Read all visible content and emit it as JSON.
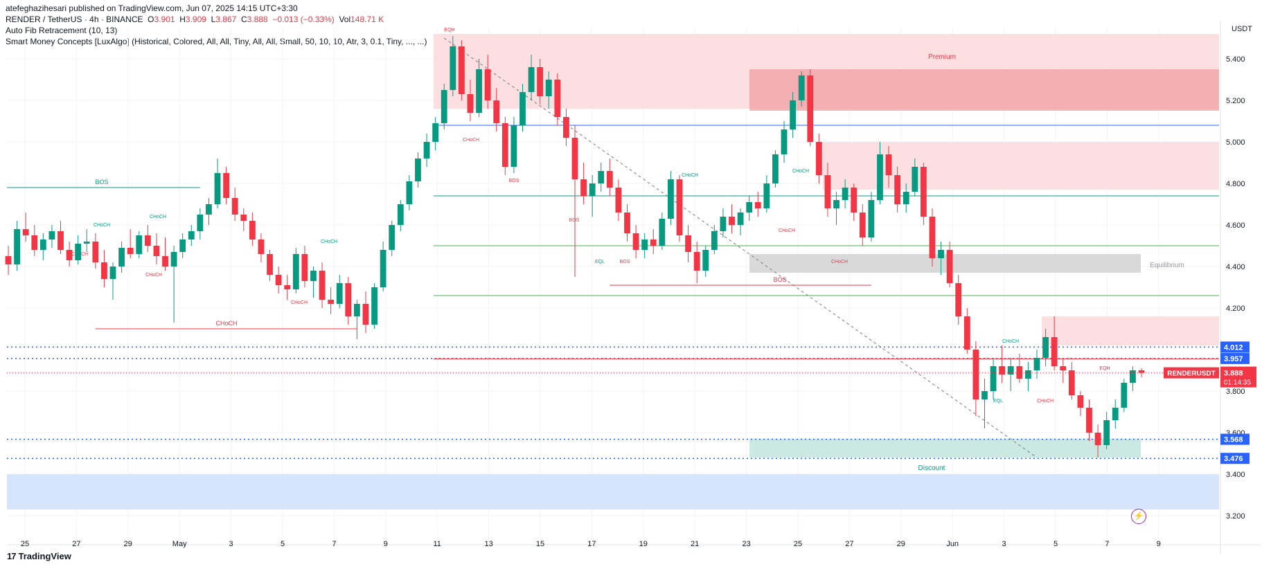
{
  "publisher": "atefeghazihesari published on TradingView.com, Jun 07, 2025 14:15 UTC+3:30",
  "symbol_line": {
    "symbol": "RENDER / TetherUS · 4h · BINANCE",
    "o_label": "O",
    "o": "3.901",
    "h_label": "H",
    "h": "3.909",
    "l_label": "L",
    "l": "3.867",
    "c_label": "C",
    "c": "3.888",
    "change": "−0.013 (−0.33%)",
    "vol_label": "Vol",
    "vol": "148.71 K"
  },
  "indicators": [
    "Auto Fib Retracement (10, 13)",
    "Smart Money Concepts [LuxAlgo] (Historical, Colored, All, All, Tiny, All, All, Small, 50, 10, 10, Atr, 3, 0.1, Tiny, ..., ...)"
  ],
  "currency": "USDT",
  "footer": {
    "brand": "TradingView",
    "logo_text": "17"
  },
  "colors": {
    "up": "#089981",
    "down": "#f23645",
    "premium": "#f7c5c8",
    "premium_dark": "#ef9a9e",
    "discount": "#b2dfd5",
    "equilibrium": "#d6d6d6",
    "blue_zone": "#cfe0fb",
    "fib_blue": "#2962ff",
    "fib_green": "#4caf50"
  },
  "chart_data": {
    "type": "candlestick",
    "title": "RENDER / TetherUS · 4h · BINANCE",
    "ylim": [
      3.15,
      5.55
    ],
    "y_ticks": [
      "5.400",
      "5.200",
      "5.000",
      "4.800",
      "4.600",
      "4.400",
      "4.200",
      "3.800",
      "3.600",
      "3.400",
      "3.200"
    ],
    "x_ticks": [
      "25",
      "27",
      "29",
      "May",
      "3",
      "5",
      "7",
      "9",
      "11",
      "13",
      "15",
      "17",
      "19",
      "21",
      "23",
      "25",
      "27",
      "29",
      "Jun",
      "3",
      "5",
      "7",
      "9"
    ],
    "price_labels": [
      {
        "value": 4.012,
        "text": "4.012",
        "color": "#2962ff"
      },
      {
        "value": 3.957,
        "text": "3.957",
        "color": "#2962ff"
      },
      {
        "value": 3.568,
        "text": "3.568",
        "color": "#2962ff"
      },
      {
        "value": 3.476,
        "text": "3.476",
        "color": "#2962ff"
      }
    ],
    "last_price": {
      "value": 3.888,
      "symbol": "RENDERUSDT",
      "text": "3.888",
      "countdown": "01:14:35"
    },
    "zones": [
      {
        "name": "Premium",
        "from": 5.16,
        "to": 5.52,
        "start": 11,
        "end": 1.0,
        "color": "#fbd3d6"
      },
      {
        "name": "Equilibrium",
        "from": 4.37,
        "to": 4.46,
        "start": 23.1,
        "end": 1.0,
        "color": "#d9d9d9"
      },
      {
        "name": "Discount",
        "from": 3.48,
        "to": 3.57,
        "start": 23.1,
        "end": 1.0,
        "color": "#cbe9e1"
      }
    ],
    "zone_labels": [
      "Premium",
      "Equilibrium",
      "Discount"
    ],
    "smc_labels": [
      "BOS",
      "CHoCH",
      "CHoCH",
      "CHoCH",
      "CHoCH",
      "CHoCH",
      "CHoCH",
      "CHoCH",
      "EQH",
      "EQH",
      "CHoCH",
      "BOS",
      "BOS",
      "BOS",
      "EQL",
      "CHoCH",
      "CHoCH",
      "CHoCH",
      "BOS",
      "CHoCH",
      "CHoCH",
      "EQL",
      "CHoCH",
      "CHoCH",
      "EQH"
    ],
    "fib_levels": [
      5.08,
      4.74,
      4.5,
      4.26
    ],
    "candles": [
      {
        "o": 4.45,
        "h": 4.5,
        "l": 4.36,
        "c": 4.41
      },
      {
        "o": 4.41,
        "h": 4.62,
        "l": 4.38,
        "c": 4.58
      },
      {
        "o": 4.58,
        "h": 4.66,
        "l": 4.52,
        "c": 4.55
      },
      {
        "o": 4.55,
        "h": 4.6,
        "l": 4.45,
        "c": 4.48
      },
      {
        "o": 4.48,
        "h": 4.56,
        "l": 4.43,
        "c": 4.53
      },
      {
        "o": 4.53,
        "h": 4.6,
        "l": 4.49,
        "c": 4.57
      },
      {
        "o": 4.57,
        "h": 4.62,
        "l": 4.46,
        "c": 4.48
      },
      {
        "o": 4.48,
        "h": 4.52,
        "l": 4.4,
        "c": 4.43
      },
      {
        "o": 4.43,
        "h": 4.55,
        "l": 4.41,
        "c": 4.51
      },
      {
        "o": 4.51,
        "h": 4.58,
        "l": 4.47,
        "c": 4.52
      },
      {
        "o": 4.52,
        "h": 4.56,
        "l": 4.39,
        "c": 4.42
      },
      {
        "o": 4.42,
        "h": 4.48,
        "l": 4.3,
        "c": 4.34
      },
      {
        "o": 4.34,
        "h": 4.42,
        "l": 4.24,
        "c": 4.4
      },
      {
        "o": 4.4,
        "h": 4.52,
        "l": 4.37,
        "c": 4.49
      },
      {
        "o": 4.49,
        "h": 4.58,
        "l": 4.44,
        "c": 4.46
      },
      {
        "o": 4.46,
        "h": 4.57,
        "l": 4.44,
        "c": 4.55
      },
      {
        "o": 4.55,
        "h": 4.6,
        "l": 4.47,
        "c": 4.5
      },
      {
        "o": 4.5,
        "h": 4.56,
        "l": 4.41,
        "c": 4.45
      },
      {
        "o": 4.45,
        "h": 4.54,
        "l": 4.38,
        "c": 4.4
      },
      {
        "o": 4.4,
        "h": 4.5,
        "l": 4.13,
        "c": 4.47
      },
      {
        "o": 4.47,
        "h": 4.56,
        "l": 4.44,
        "c": 4.53
      },
      {
        "o": 4.53,
        "h": 4.6,
        "l": 4.5,
        "c": 4.57
      },
      {
        "o": 4.57,
        "h": 4.68,
        "l": 4.53,
        "c": 4.65
      },
      {
        "o": 4.65,
        "h": 4.73,
        "l": 4.6,
        "c": 4.7
      },
      {
        "o": 4.7,
        "h": 4.92,
        "l": 4.68,
        "c": 4.85
      },
      {
        "o": 4.85,
        "h": 4.88,
        "l": 4.7,
        "c": 4.73
      },
      {
        "o": 4.73,
        "h": 4.78,
        "l": 4.62,
        "c": 4.65
      },
      {
        "o": 4.65,
        "h": 4.68,
        "l": 4.57,
        "c": 4.62
      },
      {
        "o": 4.62,
        "h": 4.66,
        "l": 4.5,
        "c": 4.53
      },
      {
        "o": 4.53,
        "h": 4.56,
        "l": 4.42,
        "c": 4.46
      },
      {
        "o": 4.46,
        "h": 4.48,
        "l": 4.33,
        "c": 4.36
      },
      {
        "o": 4.36,
        "h": 4.4,
        "l": 4.27,
        "c": 4.31
      },
      {
        "o": 4.31,
        "h": 4.36,
        "l": 4.24,
        "c": 4.29
      },
      {
        "o": 4.29,
        "h": 4.49,
        "l": 4.27,
        "c": 4.46
      },
      {
        "o": 4.46,
        "h": 4.5,
        "l": 4.3,
        "c": 4.33
      },
      {
        "o": 4.33,
        "h": 4.4,
        "l": 4.25,
        "c": 4.38
      },
      {
        "o": 4.38,
        "h": 4.42,
        "l": 4.2,
        "c": 4.24
      },
      {
        "o": 4.24,
        "h": 4.3,
        "l": 4.17,
        "c": 4.22
      },
      {
        "o": 4.22,
        "h": 4.36,
        "l": 4.2,
        "c": 4.32
      },
      {
        "o": 4.32,
        "h": 4.35,
        "l": 4.12,
        "c": 4.16
      },
      {
        "o": 4.16,
        "h": 4.24,
        "l": 4.05,
        "c": 4.22
      },
      {
        "o": 4.22,
        "h": 4.28,
        "l": 4.08,
        "c": 4.12
      },
      {
        "o": 4.12,
        "h": 4.32,
        "l": 4.1,
        "c": 4.3
      },
      {
        "o": 4.3,
        "h": 4.52,
        "l": 4.28,
        "c": 4.48
      },
      {
        "o": 4.48,
        "h": 4.62,
        "l": 4.45,
        "c": 4.6
      },
      {
        "o": 4.6,
        "h": 4.72,
        "l": 4.57,
        "c": 4.7
      },
      {
        "o": 4.7,
        "h": 4.84,
        "l": 4.67,
        "c": 4.81
      },
      {
        "o": 4.81,
        "h": 4.95,
        "l": 4.78,
        "c": 4.92
      },
      {
        "o": 4.92,
        "h": 5.04,
        "l": 4.88,
        "c": 5.0
      },
      {
        "o": 5.0,
        "h": 5.12,
        "l": 4.96,
        "c": 5.09
      },
      {
        "o": 5.09,
        "h": 5.28,
        "l": 5.06,
        "c": 5.25
      },
      {
        "o": 5.25,
        "h": 5.51,
        "l": 5.22,
        "c": 5.46
      },
      {
        "o": 5.46,
        "h": 5.49,
        "l": 5.2,
        "c": 5.23
      },
      {
        "o": 5.23,
        "h": 5.3,
        "l": 5.1,
        "c": 5.14
      },
      {
        "o": 5.14,
        "h": 5.4,
        "l": 5.12,
        "c": 5.35
      },
      {
        "o": 5.35,
        "h": 5.42,
        "l": 5.16,
        "c": 5.2
      },
      {
        "o": 5.2,
        "h": 5.26,
        "l": 5.05,
        "c": 5.09
      },
      {
        "o": 5.09,
        "h": 5.12,
        "l": 4.84,
        "c": 4.88
      },
      {
        "o": 4.88,
        "h": 5.12,
        "l": 4.85,
        "c": 5.08
      },
      {
        "o": 5.08,
        "h": 5.28,
        "l": 5.05,
        "c": 5.24
      },
      {
        "o": 5.24,
        "h": 5.42,
        "l": 5.2,
        "c": 5.36
      },
      {
        "o": 5.36,
        "h": 5.4,
        "l": 5.18,
        "c": 5.22
      },
      {
        "o": 5.22,
        "h": 5.34,
        "l": 5.16,
        "c": 5.3
      },
      {
        "o": 5.3,
        "h": 5.33,
        "l": 5.08,
        "c": 5.12
      },
      {
        "o": 5.12,
        "h": 5.16,
        "l": 4.98,
        "c": 5.02
      },
      {
        "o": 5.02,
        "h": 5.08,
        "l": 4.35,
        "c": 4.82
      },
      {
        "o": 4.82,
        "h": 4.9,
        "l": 4.7,
        "c": 4.74
      },
      {
        "o": 4.74,
        "h": 4.84,
        "l": 4.64,
        "c": 4.8
      },
      {
        "o": 4.8,
        "h": 4.9,
        "l": 4.76,
        "c": 4.86
      },
      {
        "o": 4.86,
        "h": 4.92,
        "l": 4.74,
        "c": 4.78
      },
      {
        "o": 4.78,
        "h": 4.82,
        "l": 4.62,
        "c": 4.66
      },
      {
        "o": 4.66,
        "h": 4.7,
        "l": 4.52,
        "c": 4.56
      },
      {
        "o": 4.56,
        "h": 4.6,
        "l": 4.44,
        "c": 4.48
      },
      {
        "o": 4.48,
        "h": 4.56,
        "l": 4.44,
        "c": 4.53
      },
      {
        "o": 4.53,
        "h": 4.58,
        "l": 4.46,
        "c": 4.5
      },
      {
        "o": 4.5,
        "h": 4.66,
        "l": 4.48,
        "c": 4.63
      },
      {
        "o": 4.63,
        "h": 4.86,
        "l": 4.6,
        "c": 4.82
      },
      {
        "o": 4.82,
        "h": 4.84,
        "l": 4.52,
        "c": 4.55
      },
      {
        "o": 4.55,
        "h": 4.6,
        "l": 4.42,
        "c": 4.47
      },
      {
        "o": 4.47,
        "h": 4.52,
        "l": 4.32,
        "c": 4.38
      },
      {
        "o": 4.38,
        "h": 4.5,
        "l": 4.35,
        "c": 4.48
      },
      {
        "o": 4.48,
        "h": 4.6,
        "l": 4.46,
        "c": 4.57
      },
      {
        "o": 4.57,
        "h": 4.68,
        "l": 4.54,
        "c": 4.64
      },
      {
        "o": 4.64,
        "h": 4.7,
        "l": 4.56,
        "c": 4.6
      },
      {
        "o": 4.6,
        "h": 4.68,
        "l": 4.55,
        "c": 4.66
      },
      {
        "o": 4.66,
        "h": 4.74,
        "l": 4.62,
        "c": 4.71
      },
      {
        "o": 4.71,
        "h": 4.76,
        "l": 4.64,
        "c": 4.68
      },
      {
        "o": 4.68,
        "h": 4.84,
        "l": 4.66,
        "c": 4.8
      },
      {
        "o": 4.8,
        "h": 4.96,
        "l": 4.78,
        "c": 4.94
      },
      {
        "o": 4.94,
        "h": 5.1,
        "l": 4.9,
        "c": 5.06
      },
      {
        "o": 5.06,
        "h": 5.24,
        "l": 5.02,
        "c": 5.2
      },
      {
        "o": 5.2,
        "h": 5.34,
        "l": 5.17,
        "c": 5.32
      },
      {
        "o": 5.32,
        "h": 5.35,
        "l": 4.98,
        "c": 5.0
      },
      {
        "o": 5.0,
        "h": 5.04,
        "l": 4.8,
        "c": 4.84
      },
      {
        "o": 4.84,
        "h": 4.9,
        "l": 4.64,
        "c": 4.68
      },
      {
        "o": 4.68,
        "h": 4.76,
        "l": 4.6,
        "c": 4.72
      },
      {
        "o": 4.72,
        "h": 4.82,
        "l": 4.68,
        "c": 4.78
      },
      {
        "o": 4.78,
        "h": 4.8,
        "l": 4.62,
        "c": 4.66
      },
      {
        "o": 4.66,
        "h": 4.7,
        "l": 4.5,
        "c": 4.54
      },
      {
        "o": 4.54,
        "h": 4.76,
        "l": 4.52,
        "c": 4.72
      },
      {
        "o": 4.72,
        "h": 5.0,
        "l": 4.7,
        "c": 4.94
      },
      {
        "o": 4.94,
        "h": 4.98,
        "l": 4.78,
        "c": 4.84
      },
      {
        "o": 4.84,
        "h": 4.88,
        "l": 4.66,
        "c": 4.7
      },
      {
        "o": 4.7,
        "h": 4.8,
        "l": 4.66,
        "c": 4.76
      },
      {
        "o": 4.76,
        "h": 4.92,
        "l": 4.74,
        "c": 4.88
      },
      {
        "o": 4.88,
        "h": 4.9,
        "l": 4.6,
        "c": 4.64
      },
      {
        "o": 4.64,
        "h": 4.68,
        "l": 4.4,
        "c": 4.44
      },
      {
        "o": 4.44,
        "h": 4.52,
        "l": 4.36,
        "c": 4.48
      },
      {
        "o": 4.48,
        "h": 4.52,
        "l": 4.3,
        "c": 4.32
      },
      {
        "o": 4.32,
        "h": 4.36,
        "l": 4.12,
        "c": 4.16
      },
      {
        "o": 4.16,
        "h": 4.2,
        "l": 3.98,
        "c": 4.0
      },
      {
        "o": 4.0,
        "h": 4.04,
        "l": 3.68,
        "c": 3.76
      },
      {
        "o": 3.76,
        "h": 3.86,
        "l": 3.62,
        "c": 3.8
      },
      {
        "o": 3.8,
        "h": 3.96,
        "l": 3.76,
        "c": 3.92
      },
      {
        "o": 3.92,
        "h": 4.02,
        "l": 3.84,
        "c": 3.88
      },
      {
        "o": 3.88,
        "h": 3.96,
        "l": 3.8,
        "c": 3.92
      },
      {
        "o": 3.92,
        "h": 3.98,
        "l": 3.84,
        "c": 3.86
      },
      {
        "o": 3.86,
        "h": 3.94,
        "l": 3.8,
        "c": 3.9
      },
      {
        "o": 3.9,
        "h": 4.0,
        "l": 3.86,
        "c": 3.96
      },
      {
        "o": 3.96,
        "h": 4.1,
        "l": 3.92,
        "c": 4.06
      },
      {
        "o": 4.06,
        "h": 4.16,
        "l": 3.9,
        "c": 3.92
      },
      {
        "o": 3.92,
        "h": 3.96,
        "l": 3.84,
        "c": 3.9
      },
      {
        "o": 3.9,
        "h": 3.94,
        "l": 3.76,
        "c": 3.78
      },
      {
        "o": 3.78,
        "h": 3.8,
        "l": 3.68,
        "c": 3.72
      },
      {
        "o": 3.72,
        "h": 3.76,
        "l": 3.56,
        "c": 3.6
      },
      {
        "o": 3.6,
        "h": 3.64,
        "l": 3.48,
        "c": 3.54
      },
      {
        "o": 3.54,
        "h": 3.7,
        "l": 3.52,
        "c": 3.66
      },
      {
        "o": 3.66,
        "h": 3.76,
        "l": 3.62,
        "c": 3.72
      },
      {
        "o": 3.72,
        "h": 3.86,
        "l": 3.7,
        "c": 3.84
      },
      {
        "o": 3.84,
        "h": 3.92,
        "l": 3.8,
        "c": 3.9
      },
      {
        "o": 3.9,
        "h": 3.91,
        "l": 3.867,
        "c": 3.888
      }
    ]
  }
}
